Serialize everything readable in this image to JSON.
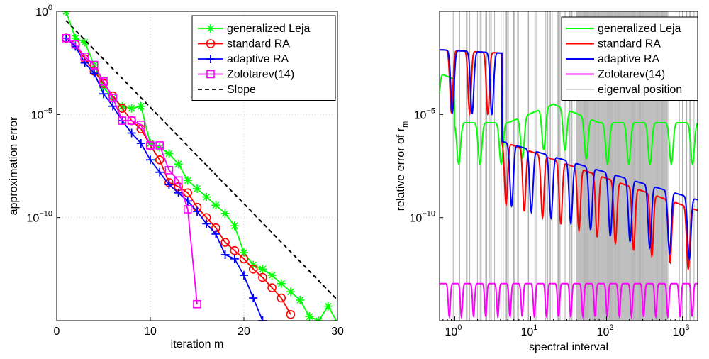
{
  "chart_data": [
    {
      "type": "line",
      "xlabel": "iteration m",
      "ylabel": "approximation error",
      "xlim": [
        0,
        30
      ],
      "ylog": true,
      "ylim_exp": [
        -15,
        0
      ],
      "grid": true,
      "xticks": [
        0,
        10,
        20,
        30
      ],
      "yticks_exp": [
        0,
        -5,
        -10
      ],
      "legend_position": "top-right",
      "series": [
        {
          "name": "generalized Leja",
          "color": "#00ff00",
          "marker": "star",
          "x": [
            1,
            2,
            3,
            4,
            5,
            6,
            7,
            8,
            9,
            10,
            11,
            12,
            13,
            14,
            15,
            16,
            17,
            18,
            19,
            20,
            21,
            22,
            23,
            24,
            25,
            26,
            27,
            28,
            29,
            30
          ],
          "log10y": [
            0,
            -1.3,
            -1.5,
            -2.6,
            -3.7,
            -4.2,
            -4.6,
            -4.7,
            -4.6,
            -6.4,
            -6.6,
            -6.9,
            -7.4,
            -8.2,
            -8.6,
            -9.0,
            -9.4,
            -9.8,
            -10.4,
            -11.7,
            -12.3,
            -12.5,
            -12.8,
            -13.2,
            -13.6,
            -14.0,
            -14.8,
            -15.0,
            -14.3,
            -15.1
          ]
        },
        {
          "name": "standard RA",
          "color": "#ff0000",
          "marker": "circle",
          "x": [
            1,
            2,
            3,
            4,
            5,
            6,
            7,
            8,
            9,
            10,
            11,
            12,
            13,
            14,
            15,
            16,
            17,
            18,
            19,
            20,
            21,
            22,
            23,
            24,
            25
          ],
          "log10y": [
            -1.3,
            -1.6,
            -2.3,
            -2.9,
            -3.5,
            -4.1,
            -4.7,
            -5.3,
            -5.7,
            -6.5,
            -7.2,
            -8.3,
            -8.5,
            -8.8,
            -9.5,
            -10.0,
            -10.5,
            -11.2,
            -11.6,
            -12.0,
            -12.5,
            -12.9,
            -13.4,
            -13.9,
            -14.7
          ]
        },
        {
          "name": "adaptive RA",
          "color": "#0000ff",
          "marker": "plus",
          "x": [
            1,
            2,
            3,
            4,
            5,
            6,
            7,
            8,
            9,
            10,
            11,
            12,
            13,
            14,
            15,
            16,
            17,
            18,
            19,
            20,
            21,
            22
          ],
          "log10y": [
            -1.3,
            -1.7,
            -2.5,
            -3.0,
            -4.0,
            -4.6,
            -5.3,
            -5.9,
            -6.4,
            -7.2,
            -7.8,
            -8.4,
            -8.8,
            -9.2,
            -9.7,
            -10.3,
            -10.8,
            -11.8,
            -12.0,
            -12.8,
            -13.9,
            -15.0
          ]
        },
        {
          "name": "Zolotarev(14)",
          "color": "#ff00ff",
          "marker": "square",
          "x": [
            1,
            2,
            3,
            4,
            5,
            6,
            7,
            8,
            9,
            10,
            11,
            12,
            13,
            14,
            15
          ],
          "log10y": [
            -1.3,
            -1.6,
            -2.2,
            -2.6,
            -3.4,
            -4.2,
            -5.3,
            -5.3,
            -5.5,
            -6.5,
            -6.5,
            -7.7,
            -8.2,
            -9.6,
            -14.2
          ]
        },
        {
          "name": "Slope",
          "color": "#000000",
          "dash": true,
          "marker": "none",
          "x": [
            1,
            30
          ],
          "log10y": [
            -0.45,
            -14.0
          ]
        }
      ]
    },
    {
      "type": "line",
      "xlabel": "spectral interval",
      "ylabel": "relative error of r",
      "ylabel_sub": "m",
      "xlog": true,
      "xlim_exp": [
        -0.2,
        3.2
      ],
      "ylog": true,
      "ylim_exp": [
        -15,
        0
      ],
      "grid": false,
      "xticks_exp": [
        0,
        1,
        2,
        3
      ],
      "yticks_exp": [
        -5,
        -10
      ],
      "legend_position": "top-right",
      "series": [
        {
          "name": "generalized Leja",
          "color": "#00ff00"
        },
        {
          "name": "standard RA",
          "color": "#ff0000"
        },
        {
          "name": "adaptive RA",
          "color": "#0000ff"
        },
        {
          "name": "Zolotarev(14)",
          "color": "#ff00ff"
        },
        {
          "name": "eigenval position",
          "color": "#b0b0b0"
        }
      ],
      "eigenvalue_band_exp": [
        -0.1,
        3.2
      ],
      "dense_band_exp": [
        1.6,
        2.8
      ]
    }
  ]
}
